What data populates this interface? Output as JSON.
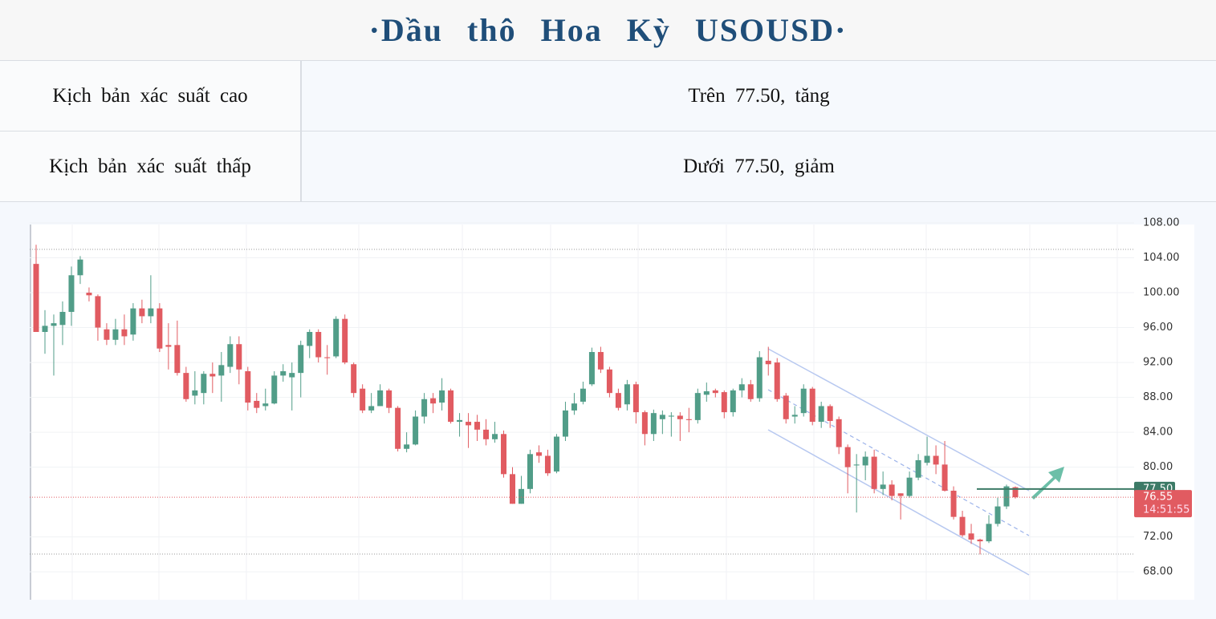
{
  "header": {
    "title": "·Dầu thô Hoa Kỳ USOUSD·"
  },
  "table": {
    "rows": [
      [
        "Kịch bản xác suất cao",
        "Trên 77.50, tăng"
      ],
      [
        "Kịch bản xác suất thấp",
        "Dưới 77.50, giảm"
      ]
    ]
  },
  "chart_data": {
    "type": "candlestick",
    "up_color": "#519d88",
    "down_color": "#e15b61",
    "ylim": [
      64.8,
      108
    ],
    "yticks": [
      {
        "value": 108,
        "label": "108.00"
      },
      {
        "value": 104,
        "label": "104.00"
      },
      {
        "value": 100,
        "label": "100.00"
      },
      {
        "value": 96,
        "label": "96.00"
      },
      {
        "value": 92,
        "label": "92.00"
      },
      {
        "value": 88,
        "label": "88.00"
      },
      {
        "value": 84,
        "label": "84.00"
      },
      {
        "value": 80,
        "label": "80.00"
      },
      {
        "value": 72,
        "label": "72.00"
      },
      {
        "value": 68,
        "label": "68.00"
      }
    ],
    "level": {
      "value": 77.5,
      "label": "77.50"
    },
    "last_price": {
      "value": 76.55,
      "label": "76.55"
    },
    "countdown": "14:51:55",
    "ohlc": [
      [
        103.3,
        105.5,
        95.5,
        95.5
      ],
      [
        95.5,
        98,
        93,
        96.2
      ],
      [
        96.2,
        97.5,
        90.5,
        96.5
      ],
      [
        96.3,
        99,
        94,
        97.8
      ],
      [
        97.8,
        103,
        96.2,
        102
      ],
      [
        102,
        104.2,
        101,
        103.8
      ],
      [
        100,
        100.6,
        99,
        99.7
      ],
      [
        99.6,
        99.8,
        94.5,
        96
      ],
      [
        95.8,
        96.5,
        94,
        94.6
      ],
      [
        94.6,
        97,
        94,
        95.8
      ],
      [
        95.8,
        97.5,
        94,
        95
      ],
      [
        95.2,
        98.8,
        94.5,
        98.2
      ],
      [
        98.2,
        99.2,
        96.5,
        97.3
      ],
      [
        97.3,
        102,
        96.5,
        98.2
      ],
      [
        98.2,
        98.8,
        93.2,
        93.6
      ],
      [
        94,
        96.5,
        91.2,
        93.8
      ],
      [
        94,
        96.8,
        90.5,
        90.8
      ],
      [
        90.8,
        91.5,
        87.5,
        87.8
      ],
      [
        88.2,
        91,
        87.2,
        88.8
      ],
      [
        88.5,
        91,
        87.2,
        90.7
      ],
      [
        90.7,
        92,
        88.5,
        90.4
      ],
      [
        90.5,
        93.2,
        87.5,
        91.7
      ],
      [
        91.5,
        95,
        90.8,
        94.1
      ],
      [
        94.1,
        95,
        89.5,
        91.2
      ],
      [
        91,
        91.5,
        86.5,
        87.4
      ],
      [
        87.6,
        88.5,
        86.2,
        86.8
      ],
      [
        87,
        89,
        86.5,
        87.3
      ],
      [
        87.3,
        91,
        87.2,
        90.5
      ],
      [
        90.5,
        91.8,
        89.8,
        91
      ],
      [
        90.3,
        92,
        86.5,
        90.8
      ],
      [
        90.8,
        94.5,
        88,
        94
      ],
      [
        93.9,
        95.8,
        92.5,
        95.5
      ],
      [
        95.5,
        95.8,
        92,
        92.6
      ],
      [
        92.6,
        94,
        90.6,
        92.5
      ],
      [
        92.7,
        97.3,
        92.5,
        97
      ],
      [
        97,
        97.5,
        91.8,
        92
      ],
      [
        91.8,
        92,
        88,
        88.5
      ],
      [
        89,
        89.5,
        86.2,
        86.5
      ],
      [
        86.5,
        88.5,
        86.2,
        87
      ],
      [
        87,
        89.5,
        87,
        88.8
      ],
      [
        88.8,
        89,
        86.2,
        86.8
      ],
      [
        86.8,
        87,
        81.8,
        82.1
      ],
      [
        82.1,
        84,
        81.7,
        82.6
      ],
      [
        82.6,
        86.5,
        82.5,
        85.8
      ],
      [
        85.8,
        88.5,
        85,
        87.8
      ],
      [
        87.9,
        88.5,
        86.2,
        87.3
      ],
      [
        87.4,
        90.2,
        86.5,
        88.8
      ],
      [
        88.8,
        89,
        85,
        85.2
      ],
      [
        85.2,
        86.2,
        83.5,
        85.4
      ],
      [
        85.2,
        86.2,
        82.2,
        84.8
      ],
      [
        85.2,
        86,
        83,
        84.3
      ],
      [
        84.3,
        85.5,
        82.5,
        83.2
      ],
      [
        83.2,
        85.2,
        82.8,
        83.8
      ],
      [
        83.8,
        84.2,
        78.8,
        79.2
      ],
      [
        79.2,
        80,
        75.8,
        75.8
      ],
      [
        75.8,
        79,
        75.8,
        77.5
      ],
      [
        77.5,
        82,
        77,
        81.5
      ],
      [
        81.7,
        82.5,
        80.5,
        81.3
      ],
      [
        81.3,
        82,
        79,
        79.3
      ],
      [
        79.5,
        83.8,
        79.3,
        83.5
      ],
      [
        83.5,
        87.5,
        83,
        86.5
      ],
      [
        86.5,
        88.5,
        86,
        87.3
      ],
      [
        87.5,
        89.8,
        87.2,
        89
      ],
      [
        89.5,
        93.7,
        89.3,
        93.2
      ],
      [
        93.2,
        93.8,
        90.8,
        91.2
      ],
      [
        91.2,
        91.5,
        88,
        88.5
      ],
      [
        88.5,
        89,
        86.5,
        86.8
      ],
      [
        87.2,
        90,
        86.5,
        89.5
      ],
      [
        89.5,
        89.8,
        85,
        86.3
      ],
      [
        86.3,
        86.5,
        82.5,
        83.8
      ],
      [
        83.8,
        86.6,
        83,
        86.2
      ],
      [
        85.5,
        86.5,
        83.8,
        86
      ],
      [
        85.8,
        86.3,
        83.5,
        85.9
      ],
      [
        85.9,
        86.3,
        83,
        85.5
      ],
      [
        85.5,
        86.8,
        84,
        85.4
      ],
      [
        85.4,
        89,
        85,
        88.5
      ],
      [
        88.3,
        89.7,
        87.5,
        88.7
      ],
      [
        88.8,
        89,
        88,
        88.5
      ],
      [
        88.6,
        88.8,
        85.6,
        86.3
      ],
      [
        86.3,
        89,
        85.8,
        88.8
      ],
      [
        88.8,
        90.2,
        88,
        89.5
      ],
      [
        89.5,
        90,
        87.5,
        87.8
      ],
      [
        87.9,
        93.3,
        87.5,
        92.6
      ],
      [
        92.2,
        93.8,
        90.5,
        91.8
      ],
      [
        92,
        92.5,
        87.5,
        87.8
      ],
      [
        88.2,
        88.5,
        85,
        85.5
      ],
      [
        85.8,
        87,
        85,
        86
      ],
      [
        86.2,
        89.5,
        85.8,
        89
      ],
      [
        89,
        89.2,
        84.8,
        85.2
      ],
      [
        85.2,
        87.5,
        84.5,
        87
      ],
      [
        87,
        87.2,
        84.5,
        85.3
      ],
      [
        85.5,
        85.8,
        81.5,
        82.3
      ],
      [
        82.3,
        82.6,
        77,
        80
      ],
      [
        80.2,
        81.5,
        74.8,
        80.3
      ],
      [
        80.2,
        81.8,
        78.5,
        81.2
      ],
      [
        81.2,
        82,
        77,
        77.5
      ],
      [
        77.5,
        79.5,
        76.8,
        78
      ],
      [
        78,
        78.5,
        76.2,
        76.7
      ],
      [
        77,
        77,
        74,
        76.7
      ],
      [
        76.7,
        79.5,
        76.5,
        78.8
      ],
      [
        78.8,
        81.5,
        78.5,
        80.8
      ],
      [
        80.5,
        83.5,
        80.2,
        81.3
      ],
      [
        81.3,
        82.5,
        79.2,
        80.3
      ],
      [
        80.3,
        83,
        77.2,
        77.3
      ],
      [
        77.3,
        77.8,
        74,
        74.3
      ],
      [
        74.3,
        75,
        72,
        72.2
      ],
      [
        72.4,
        73.5,
        71.2,
        71.7
      ],
      [
        71.7,
        71.8,
        70,
        71.5
      ],
      [
        71.5,
        74.5,
        71.3,
        73.5
      ],
      [
        73.5,
        76.5,
        73.2,
        75.5
      ],
      [
        75.5,
        78,
        75.2,
        77.8
      ],
      [
        77.7,
        77.8,
        76.4,
        76.55
      ]
    ]
  }
}
